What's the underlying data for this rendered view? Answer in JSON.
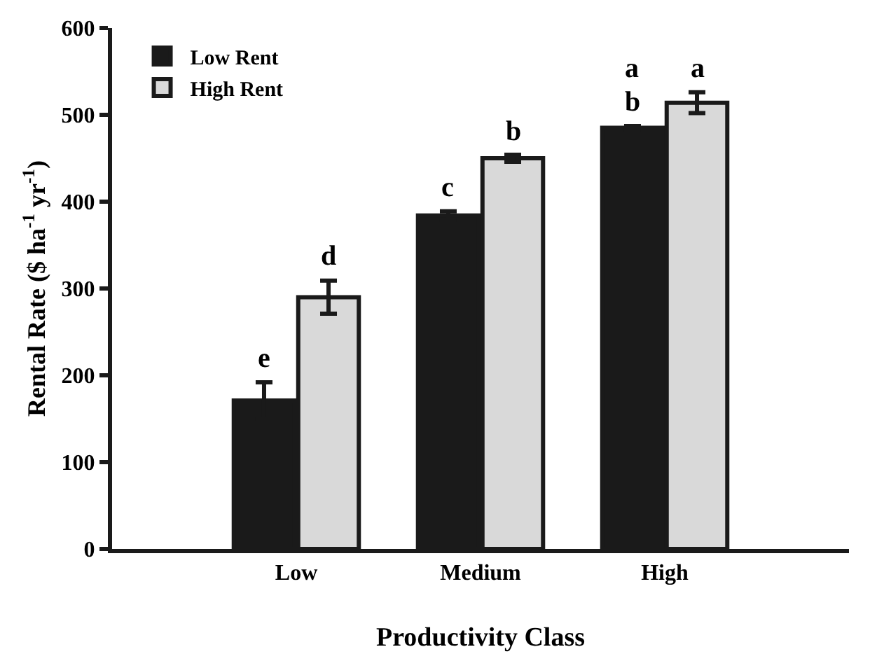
{
  "chart_data": {
    "type": "bar",
    "xlabel": "Productivity Class",
    "ylabel": "Rental Rate ($ ha$^{-1}$ yr$^{-1}$)",
    "categories": [
      "Low",
      "Medium",
      "High"
    ],
    "series": [
      {
        "name": "Low Rent",
        "color": "#1a1a1a",
        "values": [
          171,
          384,
          485
        ],
        "errors": [
          21,
          5,
          2
        ]
      },
      {
        "name": "High Rent",
        "color": "#d9d9d9",
        "values": [
          290,
          450,
          514
        ],
        "errors": [
          19,
          4,
          12
        ]
      }
    ],
    "ylim": [
      0,
      600
    ],
    "yticks": [
      0,
      100,
      200,
      300,
      400,
      500,
      600
    ],
    "grid": false,
    "legend": "top left",
    "annotations": [
      {
        "text": "e",
        "x": "Low",
        "y": 171
      },
      {
        "text": "d",
        "x": "Low",
        "y": 290
      },
      {
        "text": "c",
        "x": "Medium",
        "y": 384
      },
      {
        "text": "b",
        "x": "Medium",
        "y": 450
      },
      {
        "text": "b",
        "x": "High",
        "y": 485
      },
      {
        "text": "a",
        "x": "High",
        "y": 485
      },
      {
        "text": "a",
        "x": "High",
        "y": 514
      }
    ]
  }
}
